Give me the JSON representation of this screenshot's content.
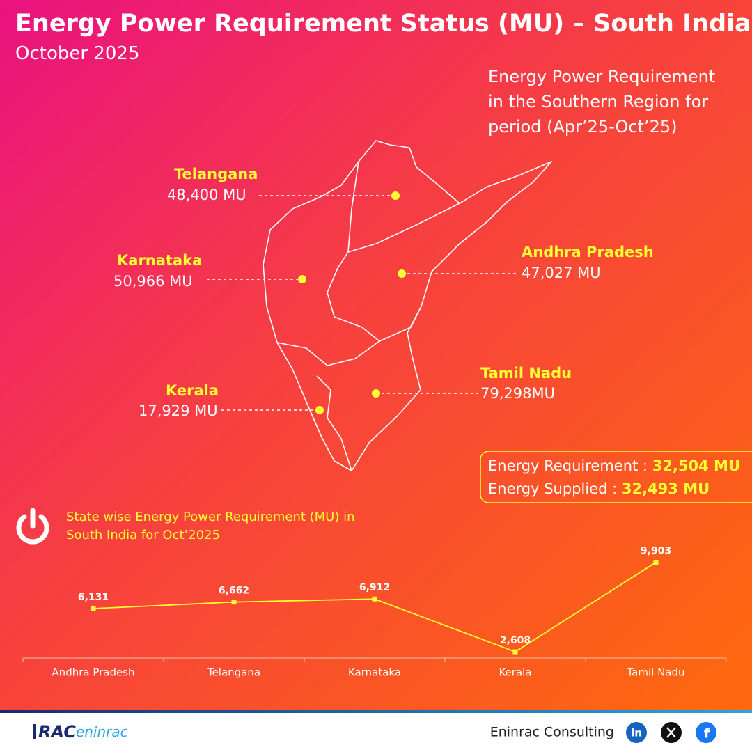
{
  "header": {
    "title": "Energy Power Requirement Status (MU) – South India",
    "subtitle": "October 2025"
  },
  "map": {
    "caption": "Energy Power Requirement in the Southern Region for period (Apr’25-Oct’25)",
    "states": [
      {
        "name": "Telangana",
        "value": "48,400 MU"
      },
      {
        "name": "Karnataka",
        "value": "50,966 MU"
      },
      {
        "name": "Andhra Pradesh",
        "value": "47,027 MU"
      },
      {
        "name": "Tamil Nadu",
        "value": "79,298MU"
      },
      {
        "name": "Kerala",
        "value": "17,929 MU"
      }
    ]
  },
  "summary": {
    "requirement_label": "Energy Requirement :",
    "requirement_value": "32,504 MU",
    "supplied_label": "Energy Supplied :",
    "supplied_value": "32,493 MU"
  },
  "chart_data": {
    "type": "line",
    "title": "State wise Energy Power Requirement (MU) in South India for Oct’2025",
    "categories": [
      "Andhra Pradesh",
      "Telangana",
      "Karnataka",
      "Kerala",
      "Tamil Nadu"
    ],
    "values": [
      6131,
      6662,
      6912,
      2608,
      9903
    ],
    "value_labels": [
      "6,131",
      "6,662",
      "6,912",
      "2,608",
      "9,903"
    ],
    "color": "#ffff33",
    "ylim": [
      2100,
      10900
    ]
  },
  "footer": {
    "logo_a": "RAC",
    "logo_b": "eninrac",
    "brand": "Eninrac Consulting",
    "linkedin": "in",
    "facebook": "f"
  }
}
